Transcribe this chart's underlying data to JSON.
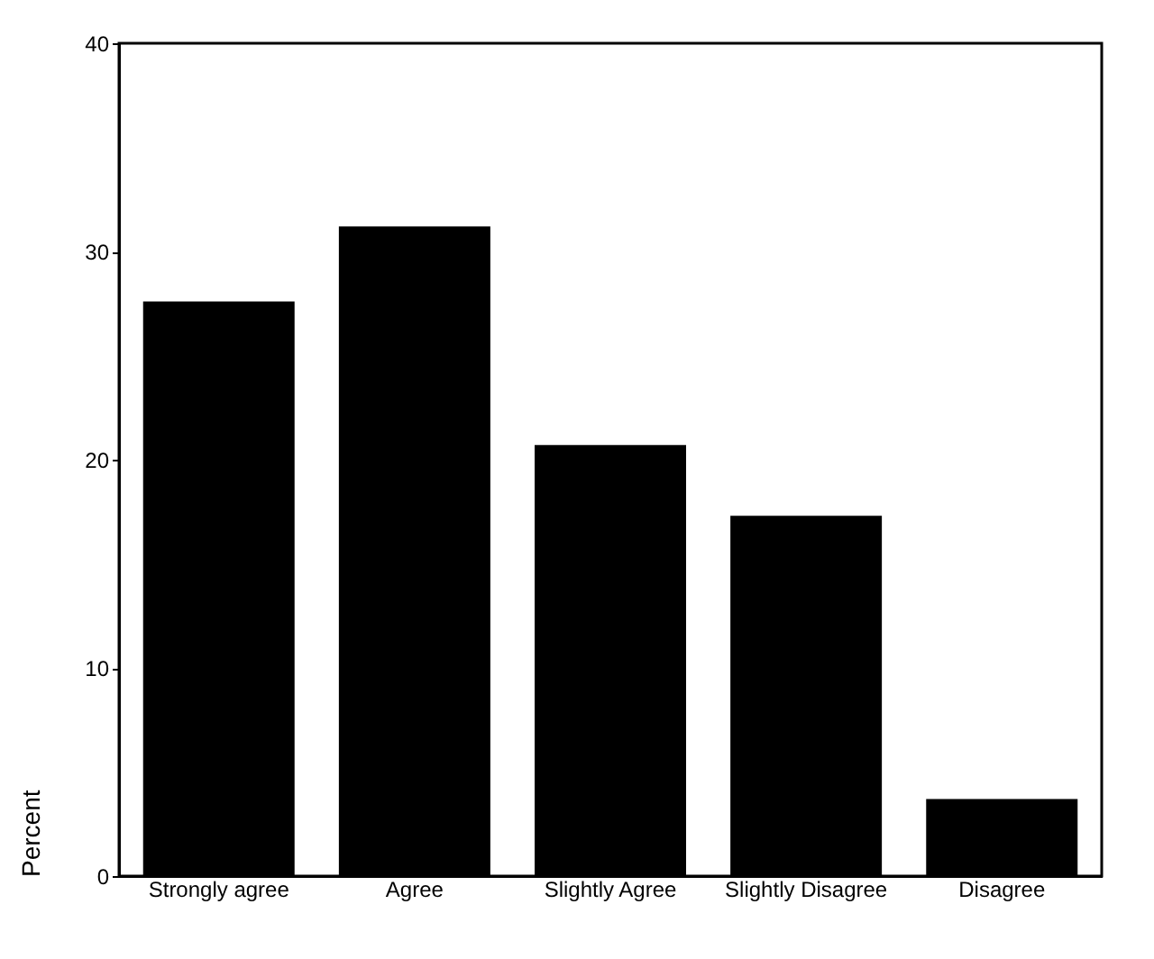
{
  "chart_data": {
    "type": "bar",
    "ylabel": "Percent",
    "categories": [
      "Strongly agree",
      "Agree",
      "Slightly Agree",
      "Slightly Disagree",
      "Disagree"
    ],
    "values": [
      27.6,
      31.2,
      20.7,
      17.3,
      3.7
    ],
    "color": "#000000",
    "ylim": [
      0,
      40
    ],
    "yticks": [
      0,
      10,
      20,
      30,
      40
    ],
    "grid": false
  }
}
